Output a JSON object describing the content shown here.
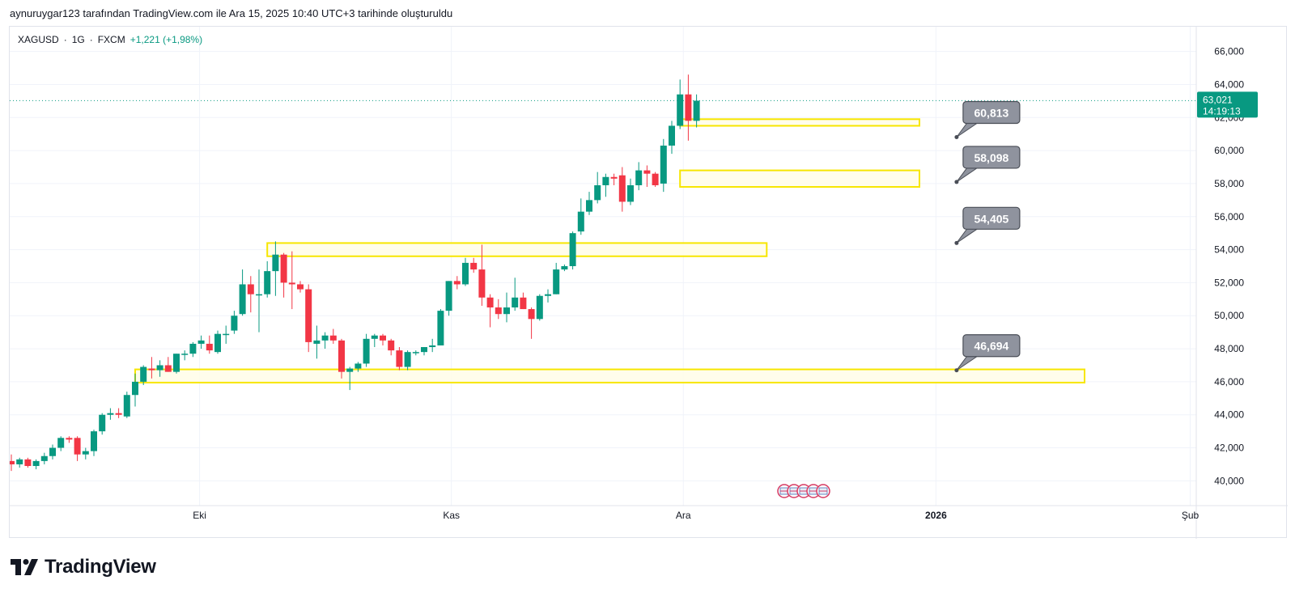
{
  "attribution": "aynuruygar123 tarafından TradingView.com ile Ara 15, 2025 10:40 UTC+3 tarihinde oluşturuldu",
  "symbol": {
    "ticker": "XAGUSD",
    "interval": "1G",
    "exchange": "FXCM",
    "change": "+1,221 (+1,98%)"
  },
  "price_tag": {
    "price": "63,021",
    "countdown": "14:19:13"
  },
  "logo_text": "TradingView",
  "colors": {
    "up": "#089981",
    "down": "#f23645",
    "zone_fill": "#fffde7",
    "zone_border": "#f7e600",
    "callout": "#8f939e"
  },
  "chart_data": {
    "type": "candlestick",
    "y_range": [
      38500,
      67500
    ],
    "y_ticks": [
      "40,000",
      "42,000",
      "44,000",
      "46,000",
      "48,000",
      "50,000",
      "52,000",
      "54,000",
      "56,000",
      "58,000",
      "60,000",
      "62,000",
      "64,000",
      "66,000"
    ],
    "x_labels": [
      {
        "label": "Eki",
        "bar": 22.8,
        "bold": false
      },
      {
        "label": "Kas",
        "bar": 53.3,
        "bold": false
      },
      {
        "label": "Ara",
        "bar": 81.4,
        "bold": false
      },
      {
        "label": "2026",
        "bar": 112.0,
        "bold": true
      },
      {
        "label": "Şub",
        "bar": 142.8,
        "bold": false
      }
    ],
    "current_price": 63021,
    "candles": [
      [
        41200,
        41600,
        40600,
        41000
      ],
      [
        41000,
        41400,
        40800,
        41300
      ],
      [
        41300,
        41400,
        40800,
        40900
      ],
      [
        40900,
        41300,
        40700,
        41200
      ],
      [
        41200,
        41700,
        41000,
        41500
      ],
      [
        41500,
        42200,
        41300,
        42000
      ],
      [
        42000,
        42700,
        41800,
        42600
      ],
      [
        42600,
        42700,
        42300,
        42500
      ],
      [
        42600,
        42700,
        41200,
        41600
      ],
      [
        41600,
        42000,
        41300,
        41800
      ],
      [
        41800,
        43100,
        41500,
        43000
      ],
      [
        43000,
        44100,
        42800,
        44000
      ],
      [
        44000,
        44400,
        43700,
        44100
      ],
      [
        44100,
        44400,
        43800,
        44000
      ],
      [
        43900,
        45400,
        43800,
        45200
      ],
      [
        45200,
        46500,
        44500,
        46000
      ],
      [
        46000,
        47000,
        45800,
        46900
      ],
      [
        46800,
        47500,
        46200,
        46700
      ],
      [
        46700,
        47300,
        46300,
        47000
      ],
      [
        47000,
        47500,
        46600,
        46600
      ],
      [
        46600,
        47700,
        46500,
        47700
      ],
      [
        47700,
        47900,
        47300,
        47700
      ],
      [
        47700,
        48400,
        47500,
        48300
      ],
      [
        48300,
        48800,
        48000,
        48500
      ],
      [
        48300,
        48800,
        47700,
        47900
      ],
      [
        47800,
        49100,
        47700,
        48900
      ],
      [
        48900,
        49400,
        48300,
        48900
      ],
      [
        49100,
        50300,
        48900,
        50000
      ],
      [
        50100,
        52800,
        50000,
        51900
      ],
      [
        51900,
        52400,
        50200,
        51300
      ],
      [
        51300,
        52800,
        49000,
        51300
      ],
      [
        51300,
        53300,
        51100,
        52700
      ],
      [
        52700,
        54500,
        51200,
        53700
      ],
      [
        53700,
        53800,
        51100,
        52000
      ],
      [
        52000,
        53900,
        50400,
        51900
      ],
      [
        51900,
        52100,
        51400,
        51600
      ],
      [
        51600,
        51900,
        47800,
        48400
      ],
      [
        48300,
        49400,
        47400,
        48500
      ],
      [
        48500,
        49000,
        48000,
        48800
      ],
      [
        48800,
        49200,
        48300,
        48500
      ],
      [
        48500,
        48600,
        46200,
        46600
      ],
      [
        46600,
        46900,
        45500,
        46800
      ],
      [
        46800,
        47200,
        46600,
        47100
      ],
      [
        47100,
        48900,
        46900,
        48600
      ],
      [
        48600,
        48900,
        48100,
        48800
      ],
      [
        48800,
        48900,
        48200,
        48500
      ],
      [
        48500,
        48600,
        47600,
        47900
      ],
      [
        47900,
        48100,
        46700,
        46900
      ],
      [
        46900,
        47900,
        46700,
        47800
      ],
      [
        47800,
        47900,
        47600,
        47800
      ],
      [
        47800,
        48100,
        47600,
        48100
      ],
      [
        48100,
        48600,
        47800,
        48200
      ],
      [
        48200,
        50400,
        48200,
        50300
      ],
      [
        50300,
        52100,
        50000,
        52100
      ],
      [
        52100,
        52400,
        51600,
        51900
      ],
      [
        51900,
        53500,
        51800,
        53200
      ],
      [
        53200,
        53500,
        52600,
        52800
      ],
      [
        52800,
        54300,
        50600,
        51100
      ],
      [
        51100,
        51300,
        49300,
        50500
      ],
      [
        50500,
        51000,
        49800,
        50100
      ],
      [
        50100,
        51400,
        49600,
        50500
      ],
      [
        50500,
        52300,
        50300,
        51100
      ],
      [
        51100,
        51400,
        50400,
        50400
      ],
      [
        50400,
        50500,
        48600,
        49800
      ],
      [
        49800,
        51300,
        49700,
        51200
      ],
      [
        51200,
        51600,
        50800,
        51300
      ],
      [
        51300,
        53200,
        51300,
        52800
      ],
      [
        52800,
        53100,
        52700,
        53000
      ],
      [
        53000,
        55100,
        52800,
        55000
      ],
      [
        55100,
        57100,
        54900,
        56300
      ],
      [
        56300,
        57500,
        56100,
        57000
      ],
      [
        57000,
        58700,
        56800,
        57900
      ],
      [
        57900,
        58600,
        57200,
        58400
      ],
      [
        58400,
        58600,
        57900,
        58300
      ],
      [
        58500,
        59000,
        56300,
        56900
      ],
      [
        56900,
        58300,
        56700,
        57900
      ],
      [
        57900,
        59300,
        57600,
        58800
      ],
      [
        58800,
        59100,
        57800,
        58600
      ],
      [
        58600,
        58700,
        57800,
        57900
      ],
      [
        58000,
        60700,
        57500,
        60300
      ],
      [
        60300,
        61800,
        59800,
        61500
      ],
      [
        61500,
        64300,
        61300,
        63400
      ],
      [
        63400,
        64600,
        60600,
        61800
      ],
      [
        61800,
        63400,
        61400,
        63021
      ]
    ],
    "zones": [
      {
        "from_bar": 81.0,
        "to_bar": 110.0,
        "low": 61500,
        "high": 61900
      },
      {
        "from_bar": 81.0,
        "to_bar": 110.0,
        "low": 57800,
        "high": 58800
      },
      {
        "from_bar": 31.0,
        "to_bar": 91.5,
        "low": 53600,
        "high": 54400
      },
      {
        "from_bar": 15.0,
        "to_bar": 130.0,
        "low": 45950,
        "high": 46750
      }
    ],
    "callouts": [
      {
        "label": "60,813",
        "price": 60813,
        "bar": 114.5
      },
      {
        "label": "58,098",
        "price": 58098,
        "bar": 114.5
      },
      {
        "label": "54,405",
        "price": 54405,
        "bar": 114.5
      },
      {
        "label": "46,694",
        "price": 46694,
        "bar": 114.5
      }
    ],
    "event_icon_count": 5
  }
}
